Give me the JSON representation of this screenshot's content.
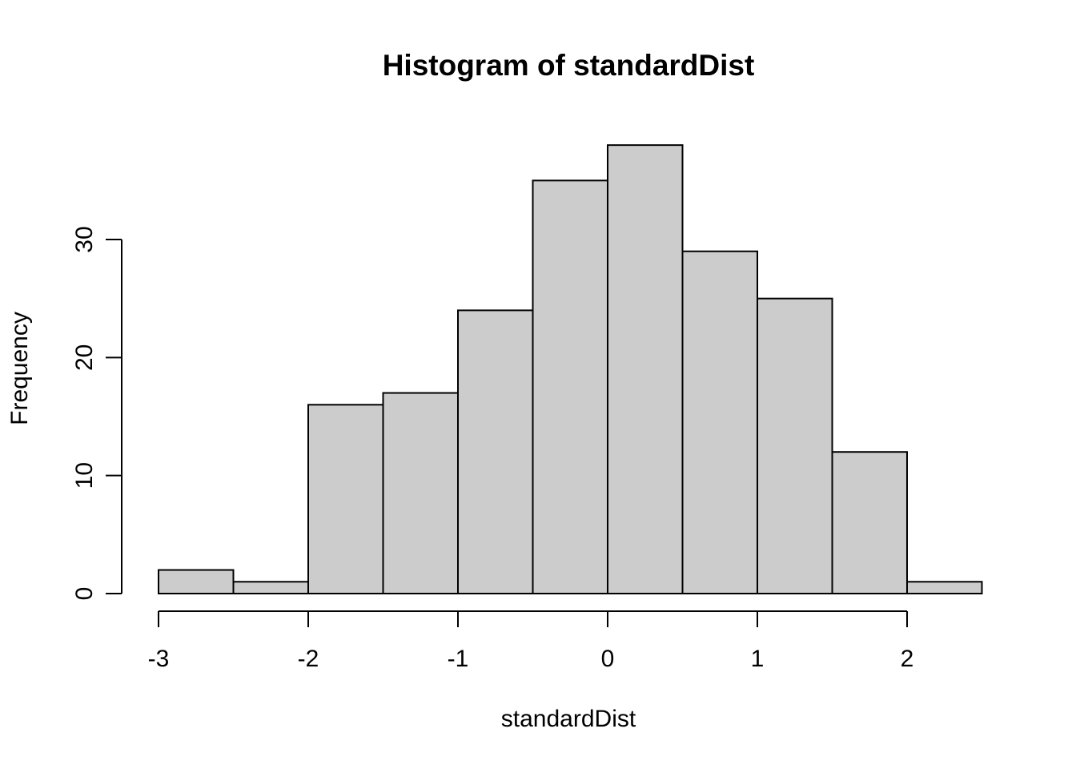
{
  "page": {
    "background": "#FFFFFF"
  },
  "chart_data": {
    "type": "bar",
    "subtype": "histogram",
    "title": "Histogram of standardDist",
    "xlabel": "standardDist",
    "ylabel": "Frequency",
    "breaks": [
      -3,
      -2.5,
      -2,
      -1.5,
      -1,
      -0.5,
      0,
      0.5,
      1,
      1.5,
      2,
      2.5
    ],
    "counts": [
      2,
      1,
      16,
      17,
      24,
      35,
      38,
      29,
      25,
      12,
      1
    ],
    "x_ticks": [
      -3,
      -2,
      -1,
      0,
      1,
      2
    ],
    "x_tick_labels": [
      "-3",
      "-2",
      "-1",
      "0",
      "1",
      "2"
    ],
    "y_ticks": [
      0,
      10,
      20,
      30
    ],
    "y_tick_labels": [
      "0",
      "10",
      "20",
      "30"
    ],
    "xlim": [
      -3,
      2.5
    ],
    "ylim": [
      0,
      38
    ],
    "grid": false,
    "legend_position": "none",
    "bar_fill": "#CCCCCC",
    "bar_stroke": "#000000",
    "axis_color": "#000000",
    "text_color": "#000000"
  }
}
